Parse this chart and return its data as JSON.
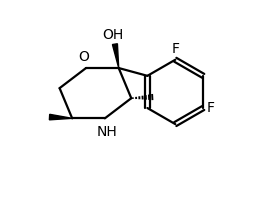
{
  "bg_color": "#ffffff",
  "line_color": "#000000",
  "bond_lw": 1.6,
  "font_size": 10,
  "fig_width": 2.55,
  "fig_height": 2.09,
  "dpi": 100,
  "xlim": [
    0,
    10
  ],
  "ylim": [
    0,
    8.2
  ]
}
